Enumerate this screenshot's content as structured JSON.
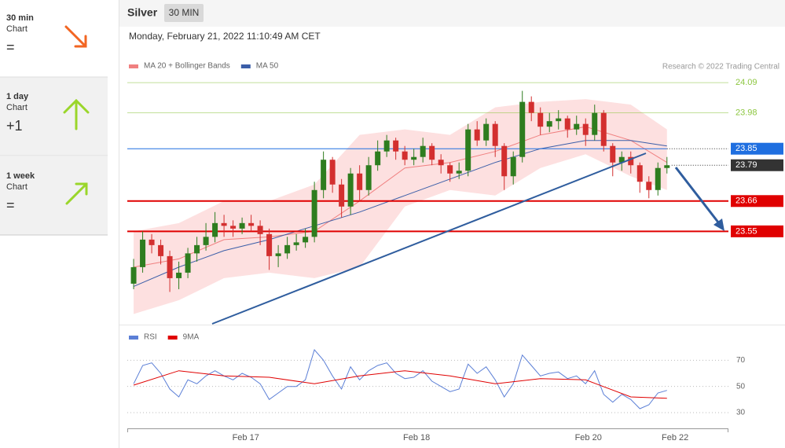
{
  "sidebar": [
    {
      "period": "30 min",
      "label": "Chart",
      "signal": "="
    },
    {
      "period": "1 day",
      "label": "Chart",
      "signal": "+1"
    },
    {
      "period": "1 week",
      "label": "Chart",
      "signal": "="
    }
  ],
  "header": {
    "instrument": "Silver",
    "timeframe": "30 MIN",
    "date": "Monday, February 21, 2022 11:10:49 AM CET",
    "credit": "Research © 2022 Trading Central"
  },
  "chart_data": [
    {
      "type": "candlestick",
      "xlim": [
        -0.7,
        65.8
      ],
      "ylim": [
        23.22,
        24.29
      ],
      "up_color": "#2e7d1f",
      "down_color": "#d32f2f",
      "x": [
        0,
        1,
        2,
        3,
        4,
        5,
        6,
        7,
        8,
        9,
        10,
        11,
        12,
        13,
        14,
        15,
        16,
        17,
        18,
        19,
        20,
        21,
        22,
        23,
        24,
        25,
        26,
        27,
        28,
        29,
        30,
        31,
        32,
        33,
        34,
        35,
        36,
        37,
        38,
        39,
        40,
        41,
        42,
        43,
        44,
        45,
        46,
        47,
        48,
        49,
        50,
        51,
        52,
        53,
        54,
        55,
        56,
        57,
        58,
        59
      ],
      "open": [
        23.36,
        23.42,
        23.52,
        23.5,
        23.46,
        23.38,
        23.4,
        23.47,
        23.5,
        23.53,
        23.58,
        23.57,
        23.56,
        23.58,
        23.57,
        23.54,
        23.46,
        23.47,
        23.5,
        23.51,
        23.53,
        23.7,
        23.81,
        23.72,
        23.64,
        23.76,
        23.7,
        23.79,
        23.84,
        23.88,
        23.84,
        23.81,
        23.82,
        23.86,
        23.81,
        23.79,
        23.76,
        23.77,
        23.92,
        23.88,
        23.94,
        23.86,
        23.75,
        23.82,
        24.02,
        23.98,
        23.93,
        23.95,
        23.96,
        23.92,
        23.94,
        23.9,
        23.98,
        23.86,
        23.8,
        23.82,
        23.79,
        23.73,
        23.7,
        23.78
      ],
      "high": [
        23.45,
        23.55,
        23.54,
        23.52,
        23.48,
        23.44,
        23.49,
        23.53,
        23.58,
        23.62,
        23.61,
        23.59,
        23.6,
        23.61,
        23.59,
        23.56,
        23.5,
        23.53,
        23.54,
        23.56,
        23.73,
        23.84,
        23.82,
        23.74,
        23.78,
        23.79,
        23.82,
        23.88,
        23.9,
        23.89,
        23.86,
        23.85,
        23.89,
        23.87,
        23.83,
        23.8,
        23.8,
        23.94,
        23.95,
        23.96,
        23.95,
        23.87,
        23.84,
        24.06,
        24.04,
        24.0,
        23.98,
        23.99,
        23.97,
        23.97,
        23.96,
        24.01,
        23.99,
        23.87,
        23.84,
        23.84,
        23.8,
        23.75,
        23.8,
        23.82
      ],
      "low": [
        23.34,
        23.4,
        23.47,
        23.43,
        23.33,
        23.34,
        23.38,
        23.44,
        23.48,
        23.51,
        23.53,
        23.53,
        23.54,
        23.55,
        23.5,
        23.41,
        23.42,
        23.45,
        23.48,
        23.49,
        23.51,
        23.67,
        23.69,
        23.6,
        23.61,
        23.66,
        23.68,
        23.77,
        23.82,
        23.81,
        23.79,
        23.79,
        23.8,
        23.79,
        23.76,
        23.73,
        23.74,
        23.75,
        23.86,
        23.86,
        23.82,
        23.7,
        23.72,
        23.8,
        23.95,
        23.9,
        23.91,
        23.92,
        23.89,
        23.9,
        23.86,
        23.88,
        23.84,
        23.75,
        23.77,
        23.76,
        23.69,
        23.67,
        23.68,
        23.76
      ],
      "close": [
        23.42,
        23.52,
        23.5,
        23.46,
        23.38,
        23.4,
        23.47,
        23.5,
        23.53,
        23.58,
        23.57,
        23.56,
        23.58,
        23.57,
        23.54,
        23.46,
        23.47,
        23.5,
        23.51,
        23.53,
        23.7,
        23.81,
        23.72,
        23.64,
        23.76,
        23.7,
        23.79,
        23.84,
        23.88,
        23.84,
        23.81,
        23.82,
        23.86,
        23.81,
        23.79,
        23.76,
        23.77,
        23.92,
        23.88,
        23.94,
        23.86,
        23.75,
        23.82,
        24.02,
        23.98,
        23.93,
        23.95,
        23.96,
        23.92,
        23.94,
        23.9,
        23.98,
        23.86,
        23.8,
        23.82,
        23.79,
        23.73,
        23.7,
        23.78,
        23.79
      ],
      "overlays": [
        {
          "name": "MA 20 + Bollinger Bands",
          "color": "#f08080",
          "fill": "#fde0e0",
          "x": [
            0,
            5,
            10,
            15,
            20,
            25,
            30,
            35,
            40,
            45,
            50,
            55,
            59
          ],
          "values": [
            23.42,
            23.45,
            23.52,
            23.53,
            23.55,
            23.66,
            23.78,
            23.8,
            23.84,
            23.9,
            23.93,
            23.88,
            23.8
          ],
          "upper": [
            23.55,
            23.58,
            23.66,
            23.66,
            23.72,
            23.9,
            23.92,
            23.9,
            24.0,
            24.02,
            24.03,
            24.01,
            23.92
          ],
          "lower": [
            23.25,
            23.3,
            23.38,
            23.4,
            23.38,
            23.42,
            23.64,
            23.7,
            23.68,
            23.78,
            23.83,
            23.75,
            23.7
          ]
        },
        {
          "name": "MA 50",
          "color": "#3b5ea8",
          "x": [
            0,
            5,
            10,
            15,
            20,
            25,
            30,
            35,
            40,
            45,
            50,
            55,
            59
          ],
          "values": [
            23.35,
            23.42,
            23.48,
            23.52,
            23.57,
            23.62,
            23.68,
            23.74,
            23.8,
            23.85,
            23.88,
            23.88,
            23.86
          ]
        }
      ],
      "levels": [
        {
          "value": 24.09,
          "color": "#8cc63f",
          "style": "text"
        },
        {
          "value": 23.98,
          "color": "#8cc63f",
          "style": "text"
        },
        {
          "value": 23.85,
          "color": "#1f6fe0",
          "style": "box"
        },
        {
          "value": 23.79,
          "color": "#333333",
          "style": "box-dotted"
        },
        {
          "value": 23.66,
          "color": "#e00000",
          "style": "box-thick"
        },
        {
          "value": 23.55,
          "color": "#e00000",
          "style": "box-thick"
        }
      ]
    },
    {
      "type": "line",
      "xlim": [
        -0.7,
        65.8
      ],
      "ylim": [
        18,
        81
      ],
      "yticks": [
        30,
        50,
        70
      ],
      "xticks": [
        {
          "value": 12.4,
          "label": "Feb 17"
        },
        {
          "value": 31.3,
          "label": "Feb 18"
        },
        {
          "value": 50.3,
          "label": "Feb 20"
        },
        {
          "value": 59.9,
          "label": "Feb 22"
        }
      ],
      "series": [
        {
          "name": "RSI",
          "color": "#5b7fd6",
          "x": [
            0,
            1,
            2,
            3,
            4,
            5,
            6,
            7,
            8,
            9,
            10,
            11,
            12,
            13,
            14,
            15,
            16,
            17,
            18,
            19,
            20,
            21,
            22,
            23,
            24,
            25,
            26,
            27,
            28,
            29,
            30,
            31,
            32,
            33,
            34,
            35,
            36,
            37,
            38,
            39,
            40,
            41,
            42,
            43,
            44,
            45,
            46,
            47,
            48,
            49,
            50,
            51,
            52,
            53,
            54,
            55,
            56,
            57,
            58,
            59
          ],
          "values": [
            52,
            66,
            68,
            60,
            48,
            42,
            55,
            52,
            58,
            62,
            58,
            55,
            60,
            57,
            52,
            40,
            45,
            50,
            50,
            55,
            78,
            70,
            58,
            48,
            65,
            55,
            62,
            66,
            68,
            60,
            56,
            57,
            62,
            54,
            50,
            46,
            48,
            67,
            60,
            65,
            55,
            42,
            52,
            74,
            66,
            58,
            60,
            61,
            56,
            58,
            52,
            62,
            44,
            38,
            44,
            40,
            33,
            36,
            45,
            47
          ]
        },
        {
          "name": "9MA",
          "color": "#e00000",
          "x": [
            0,
            5,
            10,
            15,
            20,
            25,
            30,
            35,
            40,
            45,
            50,
            55,
            59
          ],
          "values": [
            51,
            62,
            58,
            57,
            52,
            58,
            62,
            58,
            52,
            56,
            55,
            42,
            41
          ]
        }
      ]
    }
  ]
}
